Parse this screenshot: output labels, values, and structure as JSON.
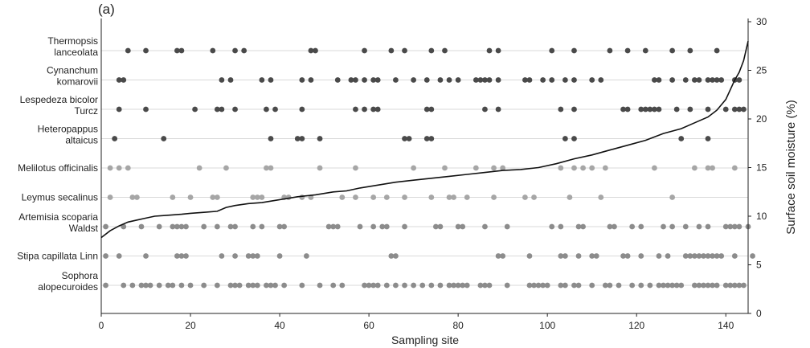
{
  "chart_data": {
    "type": "scatter",
    "panel_label": "(a)",
    "xlabel": "Sampling site",
    "ylabel_right": "Surface soil moisture (%)",
    "xlim": [
      0,
      145
    ],
    "x_ticks": [
      0,
      20,
      40,
      60,
      80,
      100,
      120,
      140
    ],
    "y_right_lim": [
      0,
      30
    ],
    "y_right_ticks": [
      0,
      5,
      10,
      15,
      20,
      25,
      30
    ],
    "grid": "horizontal lines at each species row",
    "species": [
      {
        "label_lines": [
          "Thermopsis",
          "lanceolata"
        ],
        "color": "#4a4a4a",
        "x": [
          6,
          10,
          17,
          18,
          25,
          30,
          32,
          47,
          48,
          59,
          65,
          68,
          74,
          77,
          87,
          89,
          101,
          106,
          114,
          118,
          122,
          128,
          132,
          138
        ]
      },
      {
        "label_lines": [
          "Cynanchum",
          "komarovii"
        ],
        "color": "#4a4a4a",
        "x": [
          4,
          5,
          27,
          29,
          36,
          38,
          45,
          47,
          53,
          56,
          57,
          59,
          61,
          62,
          66,
          70,
          73,
          76,
          78,
          80,
          84,
          85,
          86,
          87,
          89,
          95,
          96,
          99,
          101,
          104,
          106,
          110,
          112,
          124,
          125,
          128,
          131,
          133,
          134,
          136,
          137,
          138,
          139,
          142,
          143
        ]
      },
      {
        "label_lines": [
          "Lespedeza bicolor",
          "Turcz"
        ],
        "color": "#4a4a4a",
        "x": [
          4,
          10,
          21,
          26,
          27,
          30,
          37,
          39,
          45,
          57,
          59,
          61,
          62,
          73,
          74,
          86,
          89,
          103,
          106,
          117,
          118,
          121,
          122,
          123,
          124,
          125,
          129,
          132,
          136,
          140,
          142,
          143,
          144
        ]
      },
      {
        "label_lines": [
          "Heteropappus",
          "altaicus"
        ],
        "color": "#4a4a4a",
        "x": [
          3,
          14,
          38,
          44,
          45,
          49,
          68,
          69,
          73,
          74,
          104,
          106,
          130,
          136
        ]
      },
      {
        "label_lines": [
          "Melilotus officinalis"
        ],
        "color": "#a6a6a6",
        "x": [
          2,
          4,
          6,
          22,
          28,
          37,
          38,
          49,
          57,
          70,
          77,
          84,
          88,
          90,
          103,
          106,
          108,
          110,
          113,
          124,
          133,
          136,
          137,
          142
        ]
      },
      {
        "label_lines": [
          "Leymus secalinus"
        ],
        "color": "#a6a6a6",
        "x": [
          2,
          7,
          8,
          16,
          20,
          25,
          26,
          34,
          35,
          36,
          41,
          42,
          45,
          47,
          54,
          57,
          61,
          64,
          68,
          74,
          78,
          79,
          82,
          88,
          95,
          97,
          105,
          112,
          128
        ]
      },
      {
        "label_lines": [
          "Artemisia scoparia",
          "Waldst"
        ],
        "color": "#8c8c8c",
        "x": [
          1,
          5,
          9,
          13,
          16,
          17,
          18,
          19,
          23,
          26,
          29,
          30,
          34,
          36,
          40,
          41,
          51,
          52,
          53,
          58,
          61,
          63,
          64,
          68,
          75,
          76,
          80,
          81,
          86,
          91,
          101,
          103,
          107,
          108,
          114,
          115,
          119,
          121,
          126,
          128,
          131,
          134,
          136,
          140,
          141,
          142,
          143,
          145
        ]
      },
      {
        "label_lines": [
          "Stipa capillata Linn"
        ],
        "color": "#8c8c8c",
        "x": [
          1,
          4,
          10,
          17,
          18,
          19,
          27,
          30,
          33,
          34,
          35,
          40,
          46,
          65,
          66,
          89,
          90,
          96,
          103,
          104,
          107,
          110,
          111,
          117,
          118,
          121,
          125,
          127,
          131,
          132,
          133,
          134,
          135,
          136,
          137,
          138,
          139,
          142,
          146
        ]
      },
      {
        "label_lines": [
          "Sophora",
          "alopecuroides"
        ],
        "color": "#8c8c8c",
        "x": [
          1,
          5,
          7,
          9,
          10,
          11,
          13,
          15,
          16,
          18,
          20,
          23,
          26,
          29,
          30,
          31,
          33,
          34,
          35,
          37,
          38,
          39,
          41,
          45,
          49,
          52,
          54,
          59,
          60,
          61,
          62,
          64,
          66,
          68,
          70,
          72,
          74,
          76,
          78,
          79,
          80,
          81,
          82,
          85,
          86,
          87,
          91,
          96,
          97,
          98,
          99,
          100,
          103,
          104,
          106,
          107,
          110,
          113,
          114,
          116,
          119,
          121,
          123,
          125,
          126,
          127,
          128,
          129,
          130,
          133,
          134,
          135,
          136,
          137,
          138,
          140,
          141,
          142,
          143,
          144
        ]
      }
    ],
    "moisture_line": {
      "name": "Surface soil moisture",
      "color": "#111111",
      "x": [
        0,
        2,
        4,
        6,
        8,
        10,
        12,
        15,
        18,
        20,
        23,
        26,
        28,
        30,
        33,
        36,
        40,
        44,
        48,
        52,
        55,
        58,
        62,
        66,
        70,
        74,
        78,
        82,
        86,
        90,
        94,
        98,
        102,
        106,
        110,
        114,
        118,
        122,
        126,
        130,
        133,
        136,
        138,
        140,
        141,
        142,
        143,
        144,
        145
      ],
      "y": [
        7.8,
        8.5,
        9.0,
        9.4,
        9.6,
        9.8,
        10.0,
        10.1,
        10.2,
        10.3,
        10.4,
        10.5,
        10.9,
        11.1,
        11.3,
        11.4,
        11.7,
        12.0,
        12.2,
        12.5,
        12.6,
        12.9,
        13.2,
        13.5,
        13.7,
        13.9,
        14.1,
        14.3,
        14.5,
        14.7,
        14.8,
        15.0,
        15.4,
        15.9,
        16.3,
        16.8,
        17.3,
        17.8,
        18.5,
        19.0,
        19.6,
        20.2,
        20.9,
        22.0,
        23.0,
        24.0,
        24.8,
        26.0,
        28.0
      ]
    }
  }
}
